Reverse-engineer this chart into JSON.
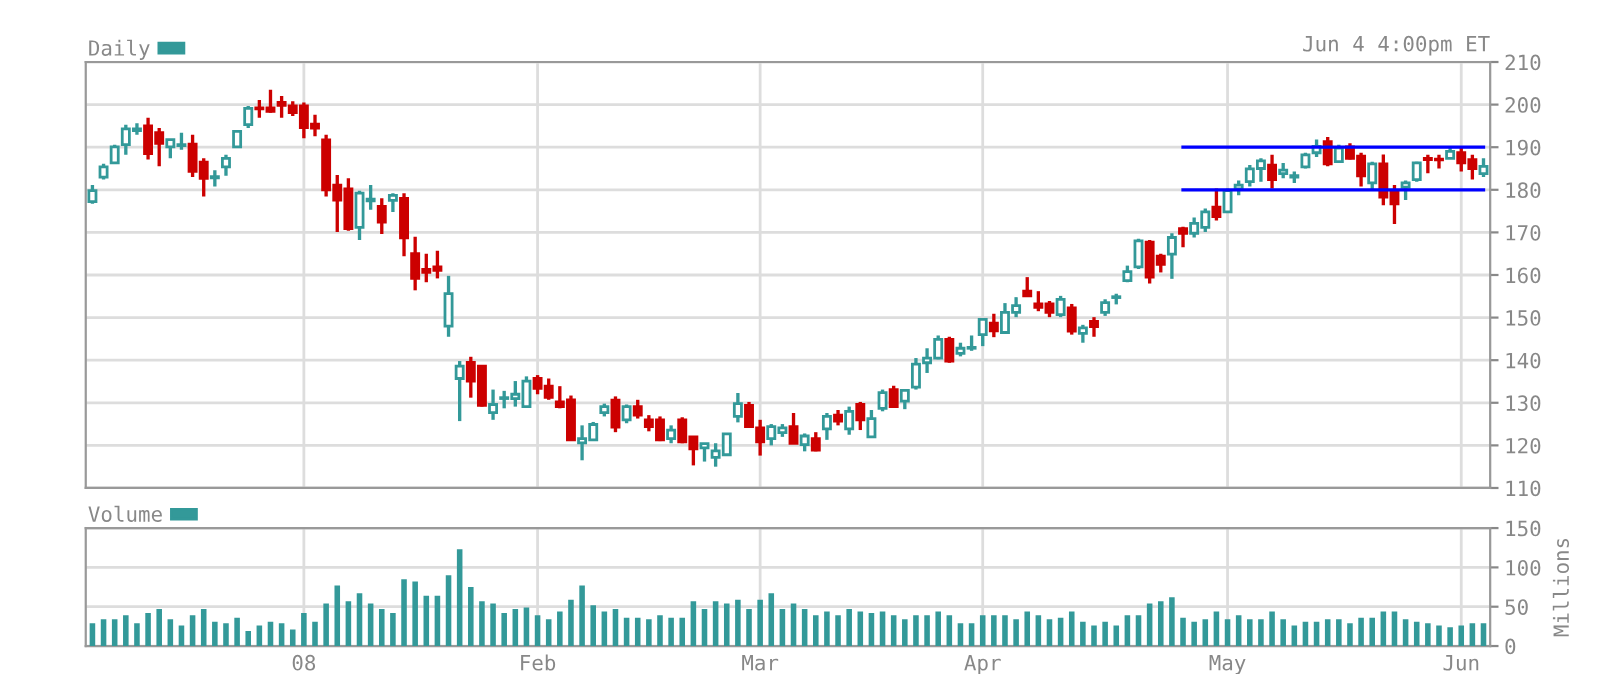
{
  "chart_data": [
    {
      "type": "candlestick",
      "tick_labels": "y",
      "grid": true,
      "legend": "top left",
      "annotations": [
        "Jun 4 4:00pm ET"
      ],
      "ylim": [
        110,
        210
      ],
      "yticks": [
        110,
        120,
        130,
        140,
        150,
        160,
        170,
        180,
        190,
        200,
        210
      ],
      "categories": [
        null,
        null,
        null,
        null,
        null,
        null,
        null,
        null,
        null,
        null,
        null,
        null,
        null,
        null,
        null,
        null,
        null,
        null,
        null,
        null,
        null,
        null,
        null,
        null,
        null,
        null,
        null,
        null,
        null,
        null,
        null,
        null,
        null,
        null,
        null,
        null,
        null,
        null,
        null,
        null,
        null,
        null,
        null,
        null,
        null,
        null,
        null,
        null,
        null,
        null,
        null,
        null,
        null,
        null,
        null,
        null,
        null,
        null,
        null,
        null,
        null,
        null,
        null,
        null,
        null,
        null,
        null,
        null,
        null,
        null,
        null,
        null,
        null,
        null,
        null,
        null,
        null,
        null,
        null,
        null,
        null,
        null,
        null,
        null,
        null,
        null,
        null,
        null,
        null,
        null,
        null,
        null,
        null,
        null,
        null,
        null,
        null,
        null,
        null,
        null,
        null,
        null,
        null,
        null,
        null,
        null,
        null,
        null,
        null,
        null,
        null,
        null,
        null,
        null,
        null,
        null,
        null,
        null,
        null,
        null,
        null,
        null,
        null,
        null,
        null,
        null
      ],
      "series": [
        {
          "name": "Daily",
          "type": "candlestick",
          "color": "#339999",
          "colors": [
            "#339999",
            "#339999",
            "#339999",
            "#339999",
            "#339999",
            "#cc0000",
            "#cc0000",
            "#339999",
            "#339999",
            "#cc0000",
            "#cc0000",
            "#339999",
            "#339999",
            "#339999",
            "#339999",
            "#cc0000",
            "#cc0000",
            "#cc0000",
            "#cc0000",
            "#cc0000",
            "#cc0000",
            "#cc0000",
            "#cc0000",
            "#cc0000",
            "#339999",
            "#339999",
            "#cc0000",
            "#339999",
            "#cc0000",
            "#cc0000",
            "#cc0000",
            "#cc0000",
            "#339999",
            "#339999",
            "#cc0000",
            "#cc0000",
            "#339999",
            "#339999",
            "#339999",
            "#339999",
            "#cc0000",
            "#cc0000",
            "#cc0000",
            "#cc0000",
            "#339999",
            "#339999",
            "#339999",
            "#cc0000",
            "#339999",
            "#cc0000",
            "#cc0000",
            "#cc0000",
            "#339999",
            "#cc0000",
            "#cc0000",
            "#339999",
            "#339999",
            "#339999",
            "#339999",
            "#cc0000",
            "#cc0000",
            "#339999",
            "#339999",
            "#cc0000",
            "#339999",
            "#cc0000",
            "#339999",
            "#cc0000",
            "#339999",
            "#cc0000",
            "#339999",
            "#339999",
            "#cc0000",
            "#339999",
            "#339999",
            "#339999",
            "#339999",
            "#cc0000",
            "#339999",
            "#339999",
            "#339999",
            "#cc0000",
            "#339999",
            "#339999",
            "#cc0000",
            "#cc0000",
            "#cc0000",
            "#339999",
            "#cc0000",
            "#339999",
            "#cc0000",
            "#339999",
            "#339999",
            "#339999",
            "#339999",
            "#cc0000",
            "#cc0000",
            "#339999",
            "#cc0000",
            "#339999",
            "#339999",
            "#cc0000",
            "#339999",
            "#339999",
            "#339999",
            "#339999",
            "#cc0000",
            "#339999",
            "#339999",
            "#339999",
            "#339999",
            "#cc0000",
            "#339999",
            "#cc0000",
            "#cc0000",
            "#339999",
            "#cc0000",
            "#cc0000",
            "#339999",
            "#339999",
            "#cc0000",
            "#cc0000",
            "#339999",
            "#cc0000",
            "#cc0000",
            "#339999"
          ],
          "ohlc": [
            [
              177.2,
              181.1,
              176.7,
              179.8
            ],
            [
              183.0,
              186.1,
              182.4,
              185.4
            ],
            [
              186.3,
              190.6,
              186.1,
              190.1
            ],
            [
              190.6,
              195.3,
              188.2,
              194.3
            ],
            [
              193.9,
              195.6,
              192.9,
              194.3
            ],
            [
              195.0,
              196.9,
              187.1,
              188.5
            ],
            [
              193.4,
              194.5,
              185.5,
              190.9
            ],
            [
              190.1,
              191.8,
              187.4,
              191.8
            ],
            [
              190.4,
              193.4,
              189.4,
              190.6
            ],
            [
              190.7,
              192.9,
              183.0,
              184.3
            ],
            [
              186.5,
              187.4,
              178.4,
              182.7
            ],
            [
              182.8,
              184.6,
              180.8,
              183.1
            ],
            [
              185.4,
              188.2,
              183.3,
              187.4
            ],
            [
              190.1,
              194.0,
              189.9,
              193.7
            ],
            [
              195.3,
              199.7,
              194.5,
              199.1
            ],
            [
              199.2,
              201.1,
              196.9,
              199.0
            ],
            [
              199.2,
              203.5,
              198.1,
              198.4
            ],
            [
              200.5,
              202.0,
              196.9,
              199.8
            ],
            [
              199.7,
              200.8,
              197.3,
              198.1
            ],
            [
              199.7,
              200.5,
              192.1,
              194.6
            ],
            [
              195.4,
              197.6,
              192.6,
              194.5
            ],
            [
              191.7,
              192.9,
              178.4,
              180.0
            ],
            [
              181.1,
              183.5,
              170.1,
              177.6
            ],
            [
              180.2,
              182.7,
              170.4,
              170.9
            ],
            [
              171.2,
              179.8,
              168.2,
              179.2
            ],
            [
              177.4,
              181.1,
              175.3,
              177.8
            ],
            [
              176.1,
              178.0,
              169.6,
              172.4
            ],
            [
              177.5,
              179.2,
              174.8,
              178.7
            ],
            [
              178.0,
              179.2,
              164.4,
              168.7
            ],
            [
              165.0,
              169.0,
              156.4,
              159.2
            ],
            [
              161.3,
              165.0,
              158.3,
              160.6
            ],
            [
              161.9,
              165.7,
              159.2,
              161.1
            ],
            [
              148.0,
              159.8,
              145.5,
              155.6
            ],
            [
              135.7,
              139.8,
              125.7,
              138.6
            ],
            [
              139.5,
              140.8,
              131.2,
              135.1
            ],
            [
              138.6,
              138.6,
              129.1,
              129.4
            ],
            [
              127.7,
              133.1,
              126.0,
              129.6
            ],
            [
              131.0,
              132.8,
              128.7,
              131.2
            ],
            [
              131.0,
              135.1,
              129.1,
              132.0
            ],
            [
              129.1,
              136.2,
              128.8,
              135.1
            ],
            [
              135.7,
              136.5,
              132.0,
              133.4
            ],
            [
              133.9,
              135.7,
              130.7,
              131.3
            ],
            [
              130.2,
              133.9,
              128.7,
              129.1
            ],
            [
              130.7,
              131.7,
              121.3,
              121.3
            ],
            [
              120.6,
              124.7,
              116.5,
              121.6
            ],
            [
              121.3,
              125.5,
              121.3,
              124.9
            ],
            [
              127.7,
              129.8,
              126.8,
              129.1
            ],
            [
              130.6,
              131.5,
              123.1,
              124.3
            ],
            [
              126.0,
              129.6,
              125.2,
              129.1
            ],
            [
              129.1,
              130.7,
              126.3,
              127.1
            ],
            [
              126.0,
              127.1,
              123.3,
              124.4
            ],
            [
              126.0,
              126.8,
              121.0,
              121.3
            ],
            [
              121.6,
              124.7,
              120.5,
              123.6
            ],
            [
              126.0,
              126.6,
              120.5,
              120.8
            ],
            [
              122.0,
              122.0,
              115.3,
              119.2
            ],
            [
              119.4,
              120.5,
              116.2,
              120.4
            ],
            [
              117.2,
              120.5,
              115.0,
              118.7
            ],
            [
              117.8,
              122.7,
              117.8,
              122.7
            ],
            [
              126.8,
              132.3,
              125.4,
              129.8
            ],
            [
              129.4,
              130.2,
              124.4,
              124.4
            ],
            [
              124.1,
              126.0,
              117.6,
              120.8
            ],
            [
              121.6,
              125.0,
              120.0,
              124.4
            ],
            [
              123.0,
              125.0,
              122.0,
              124.1
            ],
            [
              124.4,
              127.6,
              120.5,
              120.5
            ],
            [
              120.2,
              122.8,
              118.6,
              122.2
            ],
            [
              121.6,
              123.1,
              118.6,
              118.9
            ],
            [
              123.9,
              127.6,
              121.3,
              126.8
            ],
            [
              127.1,
              128.3,
              124.7,
              125.7
            ],
            [
              123.9,
              129.1,
              122.5,
              128.0
            ],
            [
              129.6,
              130.2,
              123.6,
              126.0
            ],
            [
              122.0,
              128.3,
              122.0,
              126.3
            ],
            [
              128.7,
              133.1,
              128.0,
              132.4
            ],
            [
              133.1,
              134.0,
              128.8,
              129.1
            ],
            [
              130.4,
              132.9,
              128.5,
              132.9
            ],
            [
              133.7,
              140.5,
              133.1,
              139.1
            ],
            [
              139.4,
              142.8,
              137.0,
              140.5
            ],
            [
              140.5,
              145.8,
              140.2,
              144.9
            ],
            [
              144.9,
              145.5,
              139.4,
              139.8
            ],
            [
              141.6,
              144.1,
              140.9,
              142.8
            ],
            [
              142.8,
              145.8,
              142.2,
              143.0
            ],
            [
              146.0,
              149.6,
              143.3,
              149.6
            ],
            [
              148.7,
              150.9,
              145.4,
              146.9
            ],
            [
              146.5,
              153.4,
              146.5,
              151.2
            ],
            [
              151.2,
              154.8,
              150.1,
              152.8
            ],
            [
              156.2,
              159.5,
              155.1,
              155.1
            ],
            [
              153.2,
              156.2,
              151.5,
              152.4
            ],
            [
              153.2,
              153.9,
              150.1,
              151.2
            ],
            [
              150.7,
              155.1,
              150.1,
              154.3
            ],
            [
              152.3,
              153.2,
              146.0,
              146.8
            ],
            [
              146.3,
              148.3,
              144.1,
              147.6
            ],
            [
              149.1,
              150.1,
              145.5,
              147.9
            ],
            [
              151.2,
              154.3,
              150.4,
              153.5
            ],
            [
              154.7,
              155.6,
              153.1,
              154.9
            ],
            [
              158.7,
              162.2,
              158.3,
              160.8
            ],
            [
              161.9,
              168.5,
              161.4,
              168.0
            ],
            [
              167.7,
              168.2,
              158.0,
              159.5
            ],
            [
              164.4,
              165.0,
              160.6,
              162.5
            ],
            [
              164.9,
              169.8,
              159.1,
              168.8
            ],
            [
              170.9,
              171.3,
              166.5,
              169.8
            ],
            [
              169.8,
              173.5,
              168.8,
              172.1
            ],
            [
              171.2,
              175.6,
              170.1,
              174.8
            ],
            [
              175.9,
              180.3,
              172.8,
              173.7
            ],
            [
              174.8,
              180.3,
              174.8,
              179.8
            ],
            [
              180.2,
              182.2,
              178.7,
              181.1
            ],
            [
              181.9,
              185.8,
              180.8,
              184.9
            ],
            [
              185.0,
              187.4,
              181.9,
              186.8
            ],
            [
              185.8,
              188.2,
              180.3,
              182.4
            ],
            [
              183.8,
              186.3,
              182.7,
              184.6
            ],
            [
              183.0,
              184.3,
              181.6,
              183.3
            ],
            [
              185.4,
              188.7,
              185.0,
              188.2
            ],
            [
              188.7,
              191.8,
              187.7,
              190.2
            ],
            [
              191.3,
              192.4,
              185.5,
              186.1
            ],
            [
              186.6,
              190.6,
              186.3,
              189.8
            ],
            [
              190.1,
              190.9,
              187.1,
              187.4
            ],
            [
              187.9,
              188.7,
              180.8,
              183.3
            ],
            [
              181.6,
              186.6,
              180.0,
              186.1
            ],
            [
              186.1,
              188.3,
              176.4,
              178.3
            ],
            [
              179.5,
              181.1,
              172.0,
              176.7
            ],
            [
              180.6,
              182.2,
              177.6,
              181.6
            ],
            [
              182.4,
              186.6,
              181.9,
              186.3
            ],
            [
              187.4,
              188.2,
              183.9,
              187.1
            ],
            [
              187.2,
              188.2,
              185.0,
              187.0
            ],
            [
              187.4,
              190.1,
              187.4,
              189.0
            ],
            [
              188.7,
              190.1,
              184.3,
              186.3
            ],
            [
              187.1,
              188.2,
              182.4,
              185.0
            ],
            [
              183.8,
              187.4,
              183.0,
              185.5
            ]
          ]
        },
        {
          "type": "line",
          "color": "#0000ff",
          "values": [
            null,
            null,
            null,
            null,
            null,
            null,
            null,
            null,
            null,
            null,
            null,
            null,
            null,
            null,
            null,
            null,
            null,
            null,
            null,
            null,
            null,
            null,
            null,
            null,
            null,
            null,
            null,
            null,
            null,
            null,
            null,
            null,
            null,
            null,
            null,
            null,
            null,
            null,
            null,
            null,
            null,
            null,
            null,
            null,
            null,
            null,
            null,
            null,
            null,
            null,
            null,
            null,
            null,
            null,
            null,
            null,
            null,
            null,
            null,
            null,
            null,
            null,
            null,
            null,
            null,
            null,
            null,
            null,
            null,
            null,
            null,
            null,
            null,
            null,
            null,
            null,
            null,
            null,
            null,
            null,
            null,
            null,
            null,
            null,
            null,
            null,
            null,
            null,
            null,
            null,
            null,
            null,
            null,
            null,
            null,
            null,
            null,
            null,
            190,
            190,
            190,
            190,
            190,
            190,
            190,
            190,
            190,
            190,
            190,
            190,
            190,
            190,
            190,
            190,
            190,
            190,
            190,
            190,
            190,
            190,
            190,
            190,
            190,
            190,
            190,
            190
          ]
        },
        {
          "type": "line",
          "color": "#0000ff",
          "values": [
            null,
            null,
            null,
            null,
            null,
            null,
            null,
            null,
            null,
            null,
            null,
            null,
            null,
            null,
            null,
            null,
            null,
            null,
            null,
            null,
            null,
            null,
            null,
            null,
            null,
            null,
            null,
            null,
            null,
            null,
            null,
            null,
            null,
            null,
            null,
            null,
            null,
            null,
            null,
            null,
            null,
            null,
            null,
            null,
            null,
            null,
            null,
            null,
            null,
            null,
            null,
            null,
            null,
            null,
            null,
            null,
            null,
            null,
            null,
            null,
            null,
            null,
            null,
            null,
            null,
            null,
            null,
            null,
            null,
            null,
            null,
            null,
            null,
            null,
            null,
            null,
            null,
            null,
            null,
            null,
            null,
            null,
            null,
            null,
            null,
            null,
            null,
            null,
            null,
            null,
            null,
            null,
            null,
            null,
            null,
            null,
            null,
            null,
            180,
            180,
            180,
            180,
            180,
            180,
            180,
            180,
            180,
            180,
            180,
            180,
            180,
            180,
            180,
            180,
            180,
            180,
            180,
            180,
            180,
            180,
            180,
            180,
            180,
            180,
            180,
            180
          ]
        }
      ]
    },
    {
      "type": "bar",
      "grid": true,
      "legend": "top left",
      "ylabel": "Millions",
      "ylim": [
        0,
        150
      ],
      "yticks": [
        0,
        50,
        100,
        150
      ],
      "categories": [
        null,
        null,
        null,
        null,
        null,
        null,
        null,
        null,
        null,
        null,
        null,
        null,
        null,
        null,
        null,
        null,
        null,
        null,
        null,
        "08",
        null,
        null,
        null,
        null,
        null,
        null,
        null,
        null,
        null,
        null,
        null,
        null,
        null,
        null,
        null,
        null,
        null,
        null,
        null,
        null,
        "Feb",
        null,
        null,
        null,
        null,
        null,
        null,
        null,
        null,
        null,
        null,
        null,
        null,
        null,
        null,
        null,
        null,
        null,
        null,
        null,
        "Mar",
        null,
        null,
        null,
        null,
        null,
        null,
        null,
        null,
        null,
        null,
        null,
        null,
        null,
        null,
        null,
        null,
        null,
        null,
        null,
        "Apr",
        null,
        null,
        null,
        null,
        null,
        null,
        null,
        null,
        null,
        null,
        null,
        null,
        null,
        null,
        null,
        null,
        null,
        null,
        null,
        null,
        null,
        "May",
        null,
        null,
        null,
        null,
        null,
        null,
        null,
        null,
        null,
        null,
        null,
        null,
        null,
        null,
        null,
        null,
        null,
        null,
        null,
        null,
        "Jun",
        null,
        null
      ],
      "series": [
        {
          "name": "Volume",
          "color": "#339999",
          "values": [
            29,
            34,
            34,
            39,
            29,
            42,
            47,
            34,
            26,
            39,
            47,
            31,
            29,
            36,
            19,
            26,
            31,
            29,
            21,
            42,
            31,
            54,
            77,
            57,
            67,
            54,
            47,
            42,
            85,
            82,
            64,
            64,
            90,
            123,
            75,
            57,
            54,
            42,
            47,
            49,
            39,
            34,
            44,
            59,
            77,
            52,
            44,
            47,
            36,
            36,
            34,
            39,
            36,
            36,
            57,
            47,
            57,
            54,
            59,
            47,
            59,
            67,
            47,
            54,
            47,
            39,
            44,
            39,
            47,
            44,
            42,
            44,
            39,
            34,
            39,
            39,
            44,
            39,
            29,
            29,
            39,
            39,
            39,
            34,
            44,
            39,
            34,
            36,
            44,
            31,
            26,
            31,
            26,
            39,
            39,
            54,
            57,
            62,
            36,
            31,
            34,
            44,
            34,
            39,
            34,
            34,
            44,
            34,
            26,
            31,
            31,
            34,
            34,
            29,
            36,
            36,
            44,
            44,
            34,
            31,
            29,
            26,
            24,
            26,
            29,
            29
          ]
        }
      ]
    }
  ]
}
